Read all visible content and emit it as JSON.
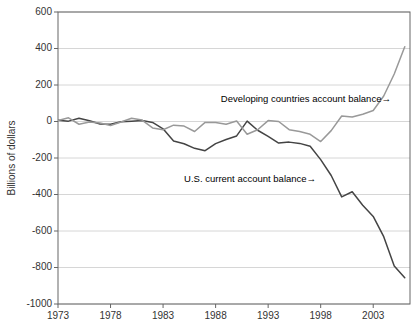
{
  "chart_data": {
    "type": "line",
    "title": "",
    "ylabel": "Billions of dollars",
    "x": [
      1973,
      1974,
      1975,
      1976,
      1977,
      1978,
      1979,
      1980,
      1981,
      1982,
      1983,
      1984,
      1985,
      1986,
      1987,
      1988,
      1989,
      1990,
      1991,
      1992,
      1993,
      1994,
      1995,
      1996,
      1997,
      1998,
      1999,
      2000,
      2001,
      2002,
      2003,
      2004,
      2005,
      2006
    ],
    "series": [
      {
        "color": "#444444",
        "values": [
          7,
          2,
          18,
          4,
          -14,
          -15,
          -1,
          2,
          5,
          -5,
          -40,
          -107,
          -122,
          -147,
          -160,
          -121,
          -99,
          -79,
          2,
          -48,
          -82,
          -118,
          -113,
          -120,
          -136,
          -209,
          -296,
          -413,
          -385,
          -459,
          -520,
          -631,
          -792,
          -856
        ]
      },
      {
        "color": "#999999",
        "values": [
          5,
          20,
          -15,
          -3,
          -8,
          -22,
          -3,
          18,
          8,
          -35,
          -45,
          -20,
          -25,
          -55,
          -5,
          -5,
          -15,
          3,
          -70,
          -45,
          5,
          0,
          -45,
          -55,
          -70,
          -110,
          -50,
          30,
          25,
          40,
          60,
          140,
          260,
          410
        ]
      }
    ],
    "xlim": [
      1973,
      2006.5
    ],
    "ylim": [
      -1000,
      600
    ],
    "xticks": [
      1973,
      1978,
      1983,
      1988,
      1993,
      1998,
      2003
    ],
    "yticks": [
      -1000,
      -800,
      -600,
      -400,
      -200,
      0,
      200,
      400,
      600
    ],
    "grid": true,
    "annotations": [
      {
        "text": "Developing countries account balance→",
        "x": 1988.5,
        "y": 120
      },
      {
        "text": "U.S. current account balance→",
        "x": 1985.0,
        "y": -315
      }
    ]
  }
}
